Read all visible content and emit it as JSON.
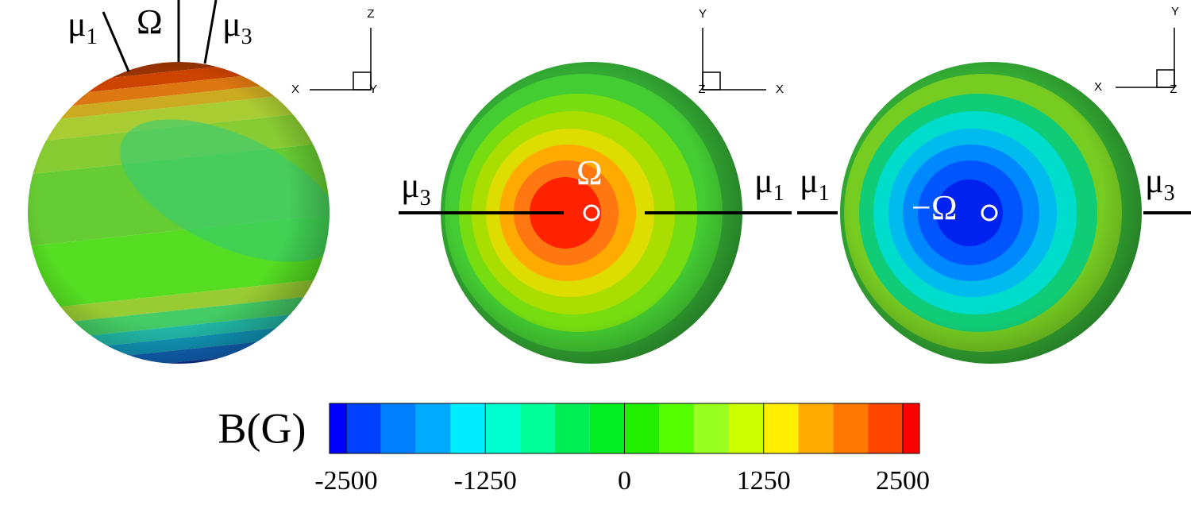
{
  "chart_data": {
    "type": "colorbar",
    "label": "B(G)",
    "levels": [
      -2650,
      -2500,
      -2187.5,
      -1875,
      -1562.5,
      -1250,
      -937.5,
      -625,
      -312.5,
      0,
      312.5,
      625,
      937.5,
      1250,
      1562.5,
      1875,
      2187.5,
      2500,
      2650
    ],
    "colors": [
      "#0000ff",
      "#0040ff",
      "#0080ff",
      "#00aaff",
      "#00eeff",
      "#00ffd0",
      "#00ff99",
      "#00ee55",
      "#00ee22",
      "#22ee00",
      "#55ff00",
      "#99ff22",
      "#ccff00",
      "#ffee00",
      "#ffaa00",
      "#ff7700",
      "#ff4400",
      "#ff0000"
    ],
    "xlim": [
      -2650,
      2650
    ],
    "xticks": [
      -2500,
      -1250,
      0,
      1250,
      2500
    ]
  },
  "panels": [
    {
      "triad": [
        "Z",
        "X",
        "Y"
      ],
      "annotations": [
        {
          "text": "μ",
          "sub": "1"
        },
        {
          "text": "Ω"
        },
        {
          "text": "μ",
          "sub": "3"
        }
      ]
    },
    {
      "triad": [
        "Y",
        "X",
        "Z"
      ],
      "annotations": [
        {
          "text": "μ",
          "sub": "3"
        },
        {
          "text": "Ω"
        },
        {
          "text": "μ",
          "sub": "1"
        }
      ]
    },
    {
      "triad": [
        "Y",
        "X",
        "Z"
      ],
      "annotations": [
        {
          "text": "μ",
          "sub": "1"
        },
        {
          "text": "−Ω"
        },
        {
          "text": "μ",
          "sub": "3"
        }
      ]
    }
  ]
}
